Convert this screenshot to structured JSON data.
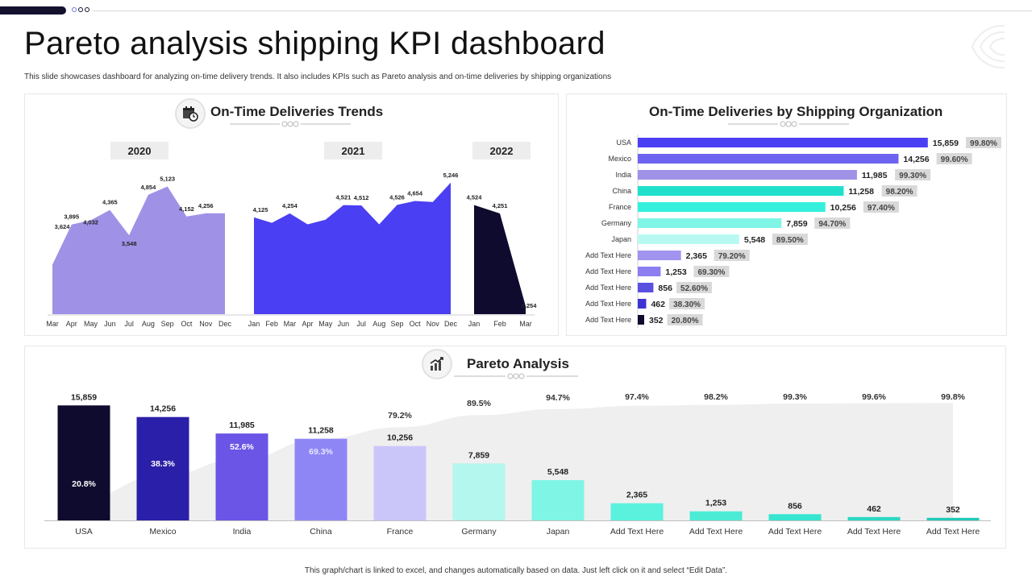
{
  "header": {
    "title": "Pareto analysis shipping KPI dashboard",
    "subtitle": "This slide showcases dashboard for analyzing on-time delivery trends. It also includes KPIs  such as Pareto analysis and on-time deliveries by shipping organizations"
  },
  "footer": {
    "note": "This graph/chart is linked to excel, and changes automatically based on data. Just left click on it and select “Edit Data”."
  },
  "colors": {
    "navy": "#14112f",
    "area2020": "#9f92e6",
    "area2021": "#4a3ff2",
    "area2022": "#0f0b2e",
    "teal": "#20e0cc"
  },
  "icons": {
    "trends_icon": "calendar-clock-icon",
    "pareto_icon": "chart-growth-icon"
  },
  "chart_data": [
    {
      "type": "area",
      "title": "On-Time Deliveries Trends",
      "series": [
        {
          "name": "2020",
          "categories": [
            "Mar",
            "Apr",
            "May",
            "Jun",
            "Jul",
            "Aug",
            "Sep",
            "Oct",
            "Nov",
            "Dec"
          ],
          "values": [
            3624,
            3895,
            4032,
            4365,
            3548,
            4854,
            5123,
            4152,
            4256,
            null
          ],
          "labels": [
            "3,624",
            "3,895",
            "4,032",
            "4,365",
            "3,548",
            "4,854",
            "5,123",
            "4,152",
            "4,256",
            ""
          ]
        },
        {
          "name": "2021",
          "categories": [
            "Jan",
            "Feb",
            "Mar",
            "Apr",
            "May",
            "Jun",
            "Jul",
            "Aug",
            "Sep",
            "Oct",
            "Nov",
            "Dec"
          ],
          "values": [
            4125,
            null,
            4254,
            null,
            null,
            4521,
            4512,
            null,
            4526,
            4654,
            null,
            5246
          ],
          "labels": [
            "4,125",
            "",
            "4,254",
            "",
            "",
            "4,521",
            "4,512",
            "",
            "4,526",
            "4,654",
            "",
            "5,246"
          ]
        },
        {
          "name": "2022",
          "categories": [
            "Jan",
            "Feb",
            "Mar"
          ],
          "values": [
            4524,
            4251,
            1254
          ],
          "labels": [
            "4,524",
            "4,251",
            "1,254"
          ]
        }
      ],
      "ylim": [
        1000,
        5500
      ]
    },
    {
      "type": "bar",
      "orientation": "horizontal",
      "title": "On-Time Deliveries by Shipping Organization",
      "categories": [
        "USA",
        "Mexico",
        "India",
        "China",
        "France",
        "Germany",
        "Japan",
        "Add Text Here",
        "Add Text Here",
        "Add Text Here",
        "Add Text Here",
        "Add Text Here"
      ],
      "values": [
        15859,
        14256,
        11985,
        11258,
        10256,
        7859,
        5548,
        2365,
        1253,
        856,
        462,
        352
      ],
      "value_labels": [
        "15,859",
        "14,256",
        "11,985",
        "11,258",
        "10,256",
        "7,859",
        "5,548",
        "2,365",
        "1,253",
        "856",
        "462",
        "352"
      ],
      "percent_labels": [
        "99.80%",
        "99.60%",
        "99.30%",
        "98.20%",
        "97.40%",
        "94.70%",
        "89.50%",
        "79.20%",
        "69.30%",
        "52.60%",
        "38.30%",
        "20.80%"
      ],
      "colors": [
        "#4a3ff2",
        "#6e63f0",
        "#9f92e6",
        "#20e0cc",
        "#34f0dc",
        "#7ff5e6",
        "#b8faf2",
        "#a094ee",
        "#8a7ef0",
        "#5a50e0",
        "#3d34d4",
        "#0f0b2e"
      ],
      "xlim": [
        0,
        16000
      ]
    },
    {
      "type": "bar",
      "title": "Pareto Analysis",
      "categories": [
        "USA",
        "Mexico",
        "India",
        "China",
        "France",
        "Germany",
        "Japan",
        "Add Text Here",
        "Add Text Here",
        "Add Text Here",
        "Add Text Here",
        "Add Text Here"
      ],
      "values": [
        15859,
        14256,
        11985,
        11258,
        10256,
        7859,
        5548,
        2365,
        1253,
        856,
        462,
        352
      ],
      "value_labels": [
        "15,859",
        "14,256",
        "11,985",
        "11,258",
        "10,256",
        "7,859",
        "5,548",
        "2,365",
        "1,253",
        "856",
        "462",
        "352"
      ],
      "cumulative_percent": [
        20.8,
        38.3,
        52.6,
        69.3,
        79.2,
        89.5,
        94.7,
        97.4,
        98.2,
        99.3,
        99.6,
        99.8
      ],
      "cumulative_labels": [
        "20.8%",
        "38.3%",
        "52.6%",
        "69.3%",
        "79.2%",
        "89.5%",
        "94.7%",
        "97.4%",
        "98.2%",
        "99.3%",
        "99.6%",
        "99.8%"
      ],
      "colors": [
        "#0f0b2e",
        "#2a1fa8",
        "#6a55e6",
        "#8f86f5",
        "#cbc6fa",
        "#b3f7ee",
        "#7ff5e6",
        "#5af2dc",
        "#4cebd6",
        "#36e6d0",
        "#2ad8c4",
        "#20cbb8"
      ],
      "ylim": [
        0,
        16000
      ]
    }
  ]
}
